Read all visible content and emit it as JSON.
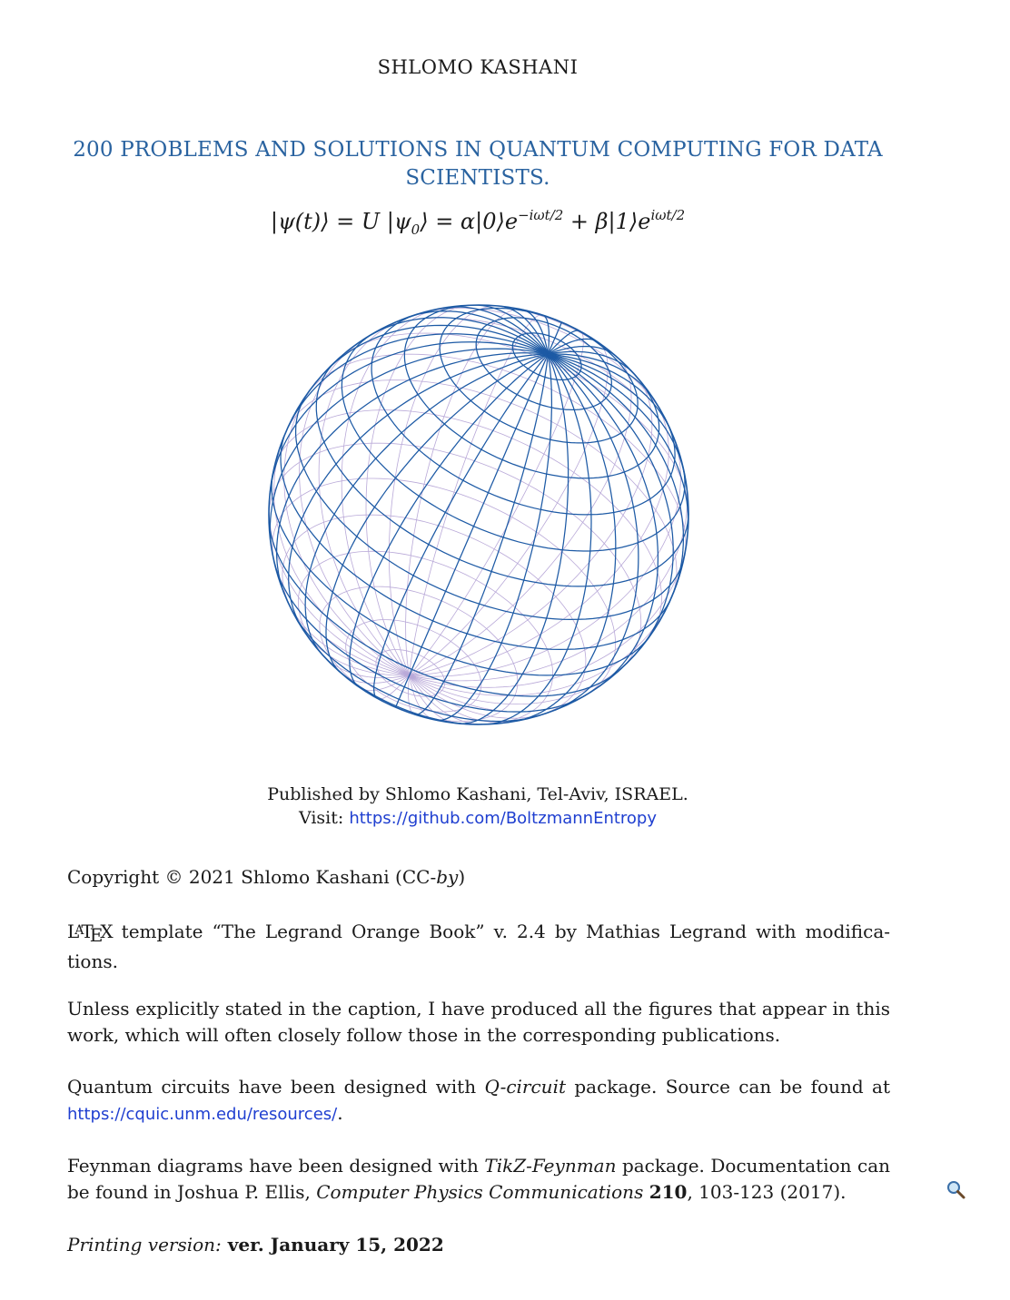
{
  "author": "SHLOMO KASHANI",
  "title": "200 PROBLEMS AND SOLUTIONS IN QUANTUM COMPUTING FOR DATA SCIENTISTS.",
  "equation": {
    "lhs": "|ψ(t)⟩ = U |ψ",
    "lhs_sub": "0",
    "mid": "⟩ = α|0⟩e",
    "sup1": "−iωt/2",
    "plus": " + β|1⟩e",
    "sup2": "iωt/2"
  },
  "publisher": {
    "line1": "Published by Shlomo Kashani, Tel-Aviv, ISRAEL.",
    "visit_label": "Visit: ",
    "url": "https://github.com/BoltzmannEntropy"
  },
  "copyright": {
    "text": "Copyright © 2021 Shlomo Kashani (CC-",
    "italic": "by",
    "close": ")"
  },
  "latex_template": {
    "logo_L": "L",
    "logo_A": "A",
    "logo_T": "T",
    "logo_E": "E",
    "logo_X": "X",
    "text": " template “The Legrand Orange Book” v. 2.4 by Mathias Legrand with modifica- tions."
  },
  "figures_note": "Unless explicitly stated in the caption, I have produced all the figures that appear in this work, which will often closely follow those in the corresponding publications.",
  "qcircuit": {
    "prefix": "Quantum circuits have been designed with ",
    "package": "Q-circuit",
    "middle": " package. Source can be found at ",
    "url": "https://cquic.unm.edu/resources/",
    "end": "."
  },
  "feynman": {
    "prefix": "Feynman diagrams have been designed with ",
    "package": "TikZ-Feynman",
    "middle": " package. Documentation can be found in Joshua P. Ellis, ",
    "journal": "Computer Physics Communications",
    "space": " ",
    "volume": "210",
    "end": ", 103-123 (2017)."
  },
  "printing": {
    "label": "Printing version:",
    "value": " ver. January 15, 2022"
  },
  "colors": {
    "title": "#2a63a0",
    "sphere_front": "#1d5aa5",
    "sphere_back": "#b9a9d8",
    "link": "#1f3fd0"
  },
  "icons": [
    "magnifier-icon"
  ]
}
